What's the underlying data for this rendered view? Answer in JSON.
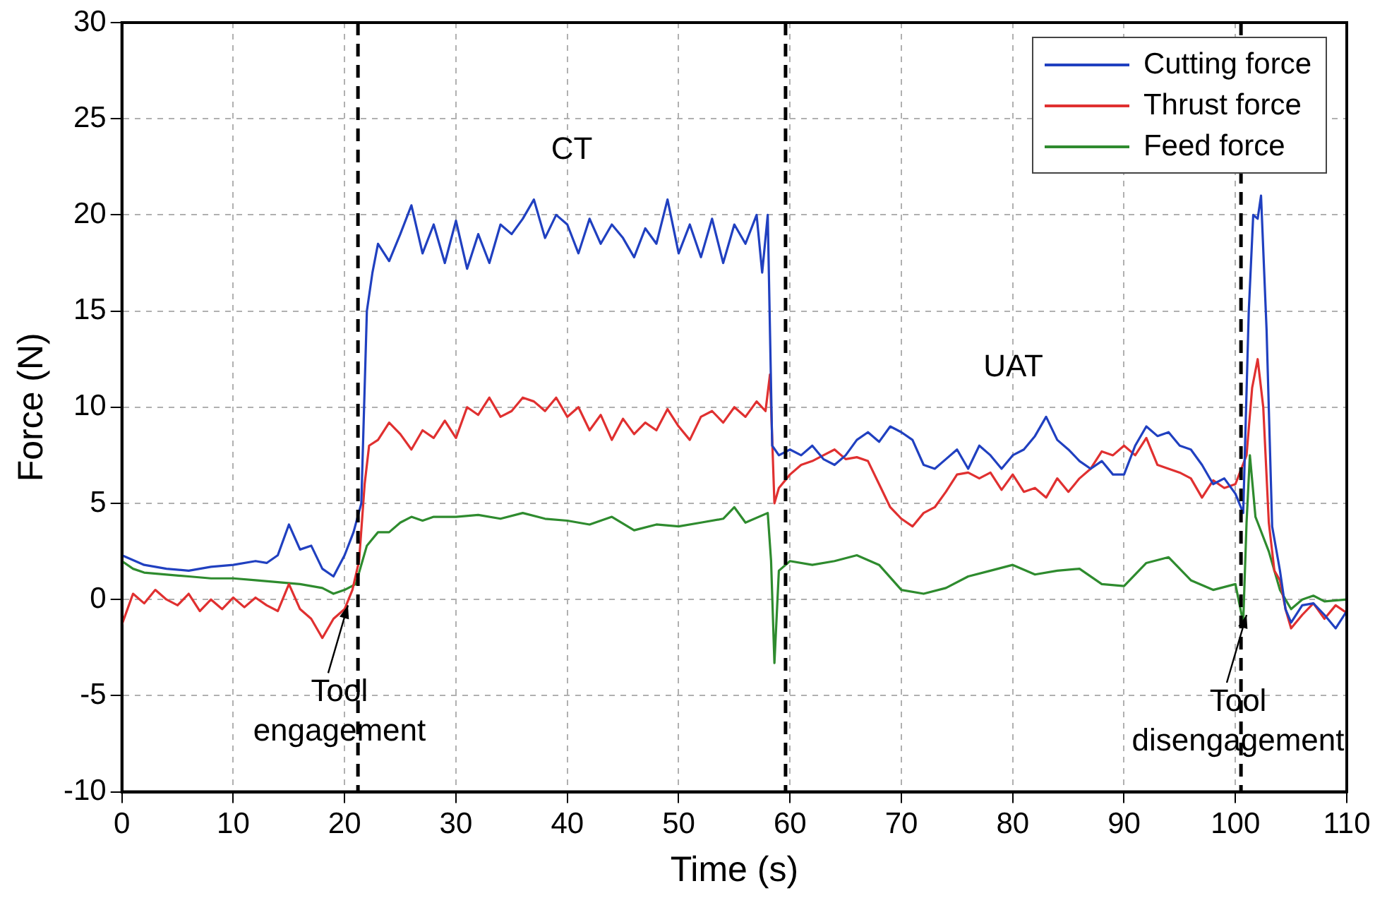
{
  "chart_data": {
    "type": "line",
    "xlabel": "Time (s)",
    "ylabel": "Force (N)",
    "xlim": [
      0,
      110
    ],
    "xticks": [
      0,
      10,
      20,
      30,
      40,
      50,
      60,
      70,
      80,
      90,
      100,
      110
    ],
    "ylim": [
      -10,
      30
    ],
    "yticks": [
      -10,
      -5,
      0,
      5,
      10,
      15,
      20,
      25,
      30
    ],
    "grid": true,
    "legend": "top right",
    "ref_lines": [
      {
        "axis": "x",
        "value": 21.2,
        "color": "#000000",
        "line_style": "dashed"
      },
      {
        "axis": "x",
        "value": 59.6,
        "color": "#000000",
        "line_style": "dashed"
      },
      {
        "axis": "x",
        "value": 100.5,
        "color": "#000000",
        "line_style": "dashed"
      }
    ],
    "annotations": [
      "CT",
      "UAT",
      {
        "text": "Tool\nengagement",
        "x": 20.3,
        "y": -0.3
      },
      {
        "text": "Tool\ndisengagement",
        "x": 101,
        "y": -0.8
      }
    ],
    "series": [
      {
        "name": "Cutting force",
        "color": "#2040c0",
        "x": [
          0,
          2,
          4,
          6,
          8,
          10,
          12,
          13,
          14,
          15,
          16,
          17,
          18,
          19,
          20,
          20.8,
          21.5,
          22,
          22.5,
          23,
          24,
          25,
          26,
          27,
          28,
          29,
          30,
          31,
          32,
          33,
          34,
          35,
          36,
          37,
          38,
          39,
          40,
          41,
          42,
          43,
          44,
          45,
          46,
          47,
          48,
          49,
          50,
          51,
          52,
          53,
          54,
          55,
          56,
          57,
          57.5,
          58,
          58.4,
          59,
          60,
          61,
          62,
          63,
          64,
          65,
          66,
          67,
          68,
          69,
          70,
          71,
          72,
          73,
          74,
          75,
          76,
          77,
          78,
          79,
          80,
          81,
          82,
          83,
          84,
          85,
          86,
          87,
          88,
          89,
          90,
          91,
          92,
          93,
          94,
          95,
          96,
          97,
          98,
          99,
          100,
          100.7,
          101.2,
          101.6,
          102,
          102.3,
          102.8,
          103.3,
          104,
          104.5,
          105,
          106,
          107,
          108,
          109,
          110
        ],
        "values": [
          2.3,
          1.8,
          1.6,
          1.5,
          1.7,
          1.8,
          2.0,
          1.9,
          2.3,
          3.9,
          2.6,
          2.8,
          1.6,
          1.2,
          2.3,
          3.5,
          5,
          15,
          17,
          18.5,
          17.6,
          19,
          20.5,
          18,
          19.5,
          17.5,
          19.7,
          17.2,
          19,
          17.5,
          19.5,
          19,
          19.8,
          20.8,
          18.8,
          20,
          19.5,
          18,
          19.8,
          18.5,
          19.5,
          18.8,
          17.8,
          19.3,
          18.5,
          20.8,
          18,
          19.5,
          17.8,
          19.8,
          17.5,
          19.5,
          18.5,
          20,
          17,
          20,
          8,
          7.5,
          7.8,
          7.5,
          8,
          7.3,
          7,
          7.5,
          8.3,
          8.7,
          8.2,
          9,
          8.7,
          8.3,
          7,
          6.8,
          7.3,
          7.8,
          6.8,
          8,
          7.5,
          6.8,
          7.5,
          7.8,
          8.5,
          9.5,
          8.3,
          7.8,
          7.2,
          6.8,
          7.2,
          6.5,
          6.5,
          8,
          9,
          8.5,
          8.7,
          8,
          7.8,
          7,
          6,
          6.3,
          5.5,
          4.5,
          15,
          20,
          19.8,
          21,
          14,
          3.8,
          1.5,
          -0.5,
          -1.2,
          -0.3,
          -0.2,
          -0.8,
          -1.5,
          -0.6
        ]
      },
      {
        "name": "Thrust force",
        "color": "#e03030",
        "x": [
          0,
          1,
          2,
          3,
          4,
          5,
          6,
          7,
          8,
          9,
          10,
          11,
          12,
          13,
          14,
          15,
          16,
          17,
          18,
          19,
          20,
          20.7,
          21.3,
          21.8,
          22.2,
          23,
          24,
          25,
          26,
          27,
          28,
          29,
          30,
          31,
          32,
          33,
          34,
          35,
          36,
          37,
          38,
          39,
          40,
          41,
          42,
          43,
          44,
          45,
          46,
          47,
          48,
          49,
          50,
          51,
          52,
          53,
          54,
          55,
          56,
          57,
          57.8,
          58.2,
          58.6,
          59,
          60,
          61,
          62,
          63,
          64,
          65,
          66,
          67,
          68,
          69,
          70,
          71,
          72,
          73,
          74,
          75,
          76,
          77,
          78,
          79,
          80,
          81,
          82,
          83,
          84,
          85,
          86,
          87,
          88,
          89,
          90,
          91,
          92,
          93,
          94,
          95,
          96,
          97,
          98,
          99,
          100,
          101,
          101.5,
          102,
          102.5,
          103,
          103.5,
          104,
          104.5,
          105,
          106,
          107,
          108,
          109,
          110
        ],
        "values": [
          -1.3,
          0.3,
          -0.2,
          0.5,
          0,
          -0.3,
          0.3,
          -0.6,
          0,
          -0.5,
          0.1,
          -0.4,
          0.1,
          -0.3,
          -0.6,
          0.8,
          -0.5,
          -1,
          -2,
          -1,
          -0.5,
          0.5,
          2,
          6,
          8,
          8.3,
          9.2,
          8.6,
          7.8,
          8.8,
          8.4,
          9.3,
          8.4,
          10,
          9.6,
          10.5,
          9.5,
          9.8,
          10.5,
          10.3,
          9.8,
          10.5,
          9.5,
          10,
          8.8,
          9.6,
          8.3,
          9.4,
          8.6,
          9.2,
          8.8,
          9.9,
          9,
          8.3,
          9.5,
          9.8,
          9.2,
          10,
          9.5,
          10.3,
          9.8,
          11.7,
          5,
          5.8,
          6.5,
          7,
          7.2,
          7.5,
          7.8,
          7.3,
          7.4,
          7.2,
          6,
          4.8,
          4.2,
          3.8,
          4.5,
          4.8,
          5.6,
          6.5,
          6.6,
          6.3,
          6.6,
          5.7,
          6.5,
          5.6,
          5.8,
          5.3,
          6.3,
          5.6,
          6.3,
          6.8,
          7.7,
          7.5,
          8,
          7.5,
          8.4,
          7,
          6.8,
          6.6,
          6.3,
          5.3,
          6.2,
          5.8,
          6,
          7.5,
          11,
          12.5,
          10,
          4,
          1.5,
          1,
          -0.5,
          -1.5,
          -0.8,
          -0.2,
          -1,
          -0.3,
          -0.7
        ]
      },
      {
        "name": "Feed force",
        "color": "#2e8b2e",
        "x": [
          0,
          1,
          2,
          4,
          6,
          8,
          10,
          12,
          14,
          16,
          18,
          19,
          20,
          21,
          22,
          23,
          24,
          25,
          26,
          27,
          28,
          30,
          32,
          34,
          36,
          38,
          40,
          42,
          44,
          46,
          48,
          50,
          52,
          54,
          55,
          56,
          58,
          58.3,
          58.6,
          59,
          60,
          62,
          64,
          66,
          68,
          70,
          72,
          74,
          76,
          78,
          80,
          82,
          84,
          86,
          88,
          90,
          92,
          94,
          96,
          98,
          100,
          100.7,
          101,
          101.3,
          101.8,
          103,
          104,
          105,
          106,
          107,
          108,
          110
        ],
        "values": [
          2.0,
          1.6,
          1.4,
          1.3,
          1.2,
          1.1,
          1.1,
          1.0,
          0.9,
          0.8,
          0.6,
          0.3,
          0.5,
          0.8,
          2.8,
          3.5,
          3.5,
          4,
          4.3,
          4.1,
          4.3,
          4.3,
          4.4,
          4.2,
          4.5,
          4.2,
          4.1,
          3.9,
          4.3,
          3.6,
          3.9,
          3.8,
          4,
          4.2,
          4.8,
          4,
          4.5,
          2,
          -3.3,
          1.5,
          2,
          1.8,
          2,
          2.3,
          1.8,
          0.5,
          0.3,
          0.6,
          1.2,
          1.5,
          1.8,
          1.3,
          1.5,
          1.6,
          0.8,
          0.7,
          1.9,
          2.2,
          1.0,
          0.5,
          0.8,
          -1.2,
          4,
          7.5,
          4.3,
          2.5,
          0.5,
          -0.5,
          0,
          0.2,
          -0.1,
          0
        ]
      }
    ]
  }
}
